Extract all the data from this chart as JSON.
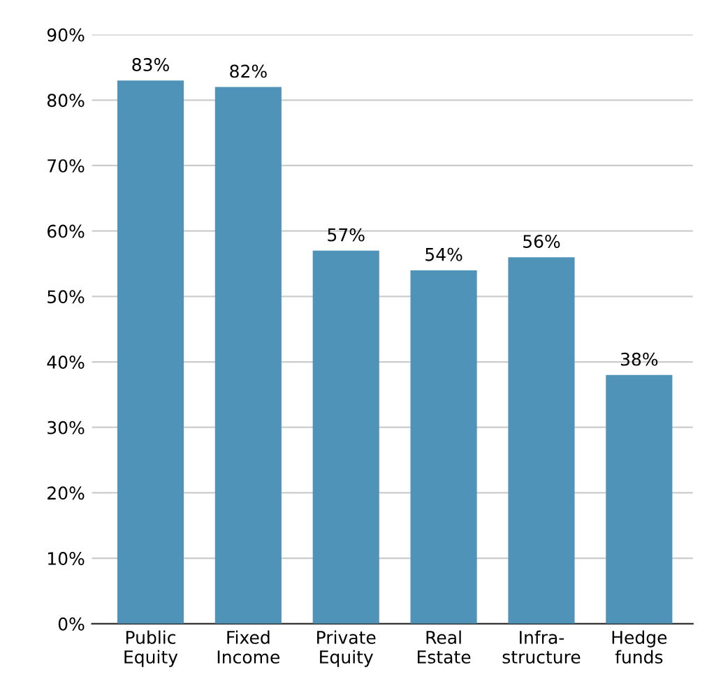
{
  "chart_data": {
    "type": "bar",
    "categories": [
      "Public\nEquity",
      "Fixed\nIncome",
      "Private\nEquity",
      "Real\nEstate",
      "Infra-\nstructure",
      "Hedge\nfunds"
    ],
    "values": [
      83,
      82,
      57,
      54,
      56,
      38
    ],
    "value_labels": [
      "83%",
      "82%",
      "57%",
      "54%",
      "56%",
      "38%"
    ],
    "color": "#4f93b8",
    "ylim": [
      0,
      90
    ],
    "yticks": [
      {
        "value": 0,
        "label": "0%"
      },
      {
        "value": 10,
        "label": "10%"
      },
      {
        "value": 20,
        "label": "20%"
      },
      {
        "value": 30,
        "label": "30%"
      },
      {
        "value": 40,
        "label": "40%"
      },
      {
        "value": 50,
        "label": "50%"
      },
      {
        "value": 60,
        "label": "60%"
      },
      {
        "value": 70,
        "label": "70%"
      },
      {
        "value": 80,
        "label": "80%"
      },
      {
        "value": 90,
        "label": "90%"
      }
    ],
    "grid": "y"
  }
}
